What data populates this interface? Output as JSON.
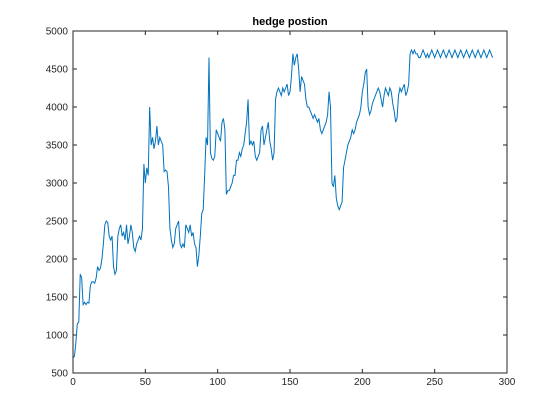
{
  "chart_data": {
    "type": "line",
    "title": "hedge postion",
    "xlabel": "",
    "ylabel": "",
    "xlim": [
      0,
      300
    ],
    "ylim": [
      500,
      5000
    ],
    "xticks": [
      0,
      50,
      100,
      150,
      200,
      250,
      300
    ],
    "yticks": [
      500,
      1000,
      1500,
      2000,
      2500,
      3000,
      3500,
      4000,
      4500,
      5000
    ],
    "grid": false,
    "legend": "none",
    "line_color": "#0072BD",
    "series": [
      {
        "x": [
          0,
          1,
          2,
          3,
          4,
          5,
          6,
          7,
          8,
          9,
          10,
          11,
          12,
          13,
          14,
          15,
          16,
          17,
          18,
          19,
          20,
          21,
          22,
          23,
          24,
          25,
          26,
          27,
          28,
          29,
          30,
          31,
          32,
          33,
          34,
          35,
          36,
          37,
          38,
          39,
          40,
          41,
          42,
          43,
          44,
          45,
          46,
          47,
          48,
          49,
          50,
          51,
          52,
          53,
          54,
          55,
          56,
          57,
          58,
          59,
          60,
          61,
          62,
          63,
          64,
          65,
          66,
          67,
          68,
          69,
          70,
          71,
          72,
          73,
          74,
          75,
          76,
          77,
          78,
          79,
          80,
          81,
          82,
          83,
          84,
          85,
          86,
          87,
          88,
          89,
          90,
          91,
          92,
          93,
          94,
          95,
          96,
          97,
          98,
          99,
          100,
          101,
          102,
          103,
          104,
          105,
          106,
          107,
          108,
          109,
          110,
          111,
          112,
          113,
          114,
          115,
          116,
          117,
          118,
          119,
          120,
          121,
          122,
          123,
          124,
          125,
          126,
          127,
          128,
          129,
          130,
          131,
          132,
          133,
          134,
          135,
          136,
          137,
          138,
          139,
          140,
          141,
          142,
          143,
          144,
          145,
          146,
          147,
          148,
          149,
          150,
          151,
          152,
          153,
          154,
          155,
          156,
          157,
          158,
          159,
          160,
          161,
          162,
          163,
          164,
          165,
          166,
          167,
          168,
          169,
          170,
          171,
          172,
          173,
          174,
          175,
          176,
          177,
          178,
          179,
          180,
          181,
          182,
          183,
          184,
          185,
          186,
          187,
          188,
          189,
          190,
          191,
          192,
          193,
          194,
          195,
          196,
          197,
          198,
          199,
          200,
          201,
          202,
          203,
          204,
          205,
          206,
          207,
          208,
          209,
          210,
          211,
          212,
          213,
          214,
          215,
          216,
          217,
          218,
          219,
          220,
          221,
          222,
          223,
          224,
          225,
          226,
          227,
          228,
          229,
          230,
          231,
          232,
          233,
          234,
          235,
          236,
          237,
          238,
          239,
          240,
          241,
          242,
          243,
          244,
          245,
          246,
          247,
          248,
          249,
          250,
          251,
          252,
          253,
          254,
          255,
          256,
          257,
          258,
          259,
          260,
          261,
          262,
          263,
          264,
          265,
          266,
          267,
          268,
          269,
          270,
          271,
          272,
          273,
          274,
          275,
          276,
          277,
          278,
          279,
          280,
          281,
          282,
          283,
          284,
          285,
          286,
          287,
          288,
          289,
          290
        ],
        "y": [
          700,
          720,
          900,
          1150,
          1170,
          1800,
          1750,
          1400,
          1430,
          1400,
          1430,
          1420,
          1650,
          1700,
          1700,
          1680,
          1750,
          1900,
          1850,
          1880,
          2000,
          2200,
          2450,
          2500,
          2480,
          2300,
          2250,
          2300,
          1900,
          1800,
          1850,
          2300,
          2400,
          2450,
          2300,
          2350,
          2250,
          2450,
          2200,
          2300,
          2450,
          2350,
          2150,
          2100,
          2200,
          2250,
          2300,
          2250,
          2400,
          3250,
          3000,
          3200,
          3100,
          4000,
          3500,
          3600,
          3450,
          3550,
          3750,
          3500,
          3600,
          3550,
          3500,
          3150,
          3170,
          3150,
          2950,
          2400,
          2250,
          2150,
          2200,
          2400,
          2450,
          2500,
          2200,
          2150,
          2200,
          2150,
          2450,
          2400,
          2350,
          2450,
          2300,
          2350,
          2200,
          2150,
          1900,
          2050,
          2300,
          2600,
          2650,
          3100,
          3600,
          3500,
          4650,
          3400,
          3320,
          3300,
          3350,
          3700,
          3650,
          3600,
          3550,
          3800,
          3850,
          3700,
          2850,
          2900,
          2900,
          2950,
          3000,
          3100,
          3100,
          3300,
          3300,
          3400,
          3350,
          3450,
          3500,
          3650,
          3800,
          4100,
          3500,
          3550,
          3500,
          3550,
          3350,
          3300,
          3350,
          3400,
          3700,
          3750,
          3500,
          3600,
          3700,
          3800,
          3550,
          3450,
          3300,
          3400,
          4100,
          4200,
          4250,
          4200,
          4150,
          4250,
          4200,
          4250,
          4300,
          4150,
          4200,
          4400,
          4700,
          4550,
          4650,
          4700,
          4500,
          4200,
          4400,
          4350,
          4300,
          4100,
          4000,
          4000,
          3950,
          3900,
          3850,
          3900,
          3850,
          3800,
          3850,
          3700,
          3650,
          3700,
          3750,
          3800,
          3900,
          4200,
          4000,
          3000,
          2950,
          3100,
          2800,
          2700,
          2650,
          2700,
          2750,
          3200,
          3300,
          3400,
          3500,
          3550,
          3600,
          3700,
          3650,
          3700,
          3800,
          3850,
          3900,
          4000,
          4200,
          4300,
          4450,
          4500,
          4000,
          3900,
          3950,
          4050,
          4100,
          4150,
          4200,
          4250,
          4200,
          4100,
          4000,
          4150,
          4250,
          4200,
          4150,
          4250,
          4200,
          4050,
          3950,
          3800,
          3850,
          4150,
          4250,
          4200,
          4250,
          4300,
          4150,
          4200,
          4300,
          4700,
          4750,
          4700,
          4750,
          4700,
          4700,
          4650,
          4650,
          4700,
          4750,
          4700,
          4650,
          4700,
          4650,
          4700,
          4750,
          4700,
          4650,
          4700,
          4750,
          4700,
          4650,
          4700,
          4750,
          4700,
          4650,
          4700,
          4750,
          4700,
          4650,
          4700,
          4750,
          4700,
          4650,
          4700,
          4750,
          4700,
          4650,
          4700,
          4750,
          4700,
          4650,
          4700,
          4750,
          4700,
          4650,
          4700,
          4750,
          4700,
          4650,
          4700,
          4750,
          4700,
          4650,
          4700,
          4750,
          4700,
          4650
        ]
      }
    ]
  }
}
